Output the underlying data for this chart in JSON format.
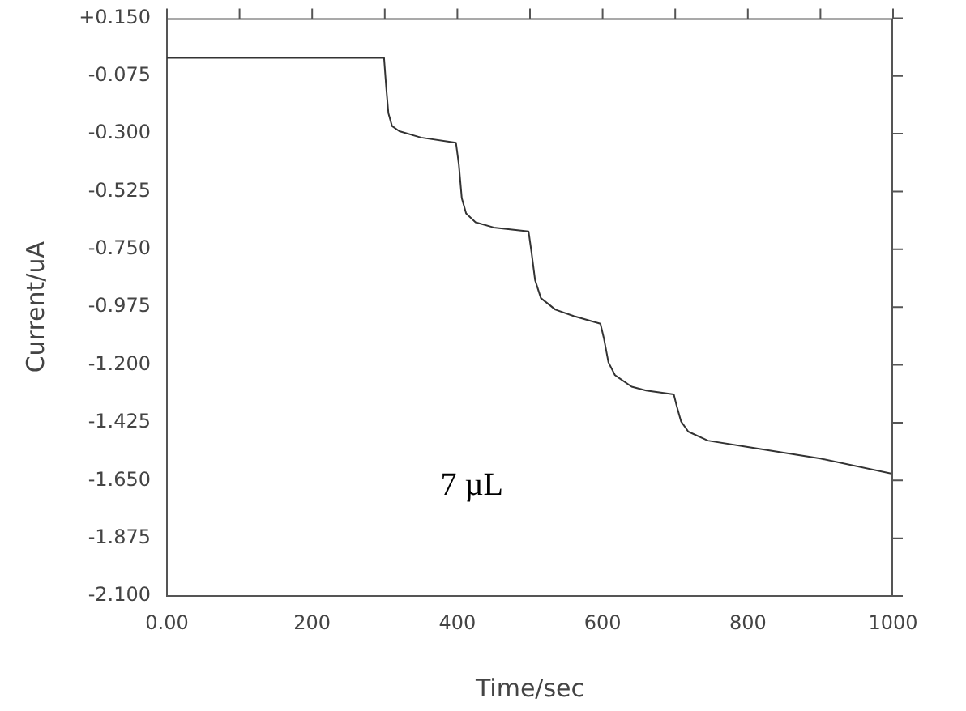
{
  "chart_data": {
    "type": "line",
    "xlabel": "Time/sec",
    "ylabel": "Current/uA",
    "x": [
      0,
      299,
      302,
      305,
      310,
      320,
      350,
      398,
      402,
      406,
      412,
      425,
      450,
      498,
      502,
      507,
      515,
      535,
      560,
      597,
      602,
      608,
      617,
      640,
      660,
      698,
      702,
      708,
      718,
      745,
      800,
      900,
      1000
    ],
    "series": [
      {
        "color": "#333333",
        "values": [
          -0.005,
          -0.005,
          -0.12,
          -0.22,
          -0.27,
          -0.29,
          -0.315,
          -0.335,
          -0.42,
          -0.55,
          -0.61,
          -0.645,
          -0.665,
          -0.68,
          -0.76,
          -0.87,
          -0.94,
          -0.985,
          -1.01,
          -1.04,
          -1.1,
          -1.19,
          -1.24,
          -1.285,
          -1.3,
          -1.315,
          -1.36,
          -1.42,
          -1.46,
          -1.495,
          -1.52,
          -1.565,
          -1.625
        ]
      }
    ],
    "xlim": [
      0,
      1000
    ],
    "xticks": [
      {
        "value": 0,
        "label": "0.00"
      },
      {
        "value": 100,
        "label": null
      },
      200,
      {
        "value": 300,
        "label": null
      },
      400,
      {
        "value": 500,
        "label": null
      },
      600,
      {
        "value": 700,
        "label": null
      },
      800,
      {
        "value": 900,
        "label": null
      },
      1000
    ],
    "ylim": [
      -2.1,
      0.15
    ],
    "yticks": [
      {
        "value": -2.1,
        "label": "-2.100"
      },
      {
        "value": -1.875,
        "label": "-1.875"
      },
      {
        "value": -1.65,
        "label": "-1.650"
      },
      {
        "value": -1.425,
        "label": "-1.425"
      },
      {
        "value": -1.2,
        "label": "-1.200"
      },
      {
        "value": -0.975,
        "label": "-0.975"
      },
      {
        "value": -0.75,
        "label": "-0.750"
      },
      {
        "value": -0.525,
        "label": "-0.525"
      },
      {
        "value": -0.3,
        "label": "-0.300"
      },
      {
        "value": -0.075,
        "label": "-0.075"
      },
      {
        "value": 0.15,
        "label": "+0.150"
      }
    ],
    "annotations": [
      "7 µL"
    ],
    "grid": false,
    "legend": false,
    "marker": "none",
    "line_style": "solid"
  }
}
